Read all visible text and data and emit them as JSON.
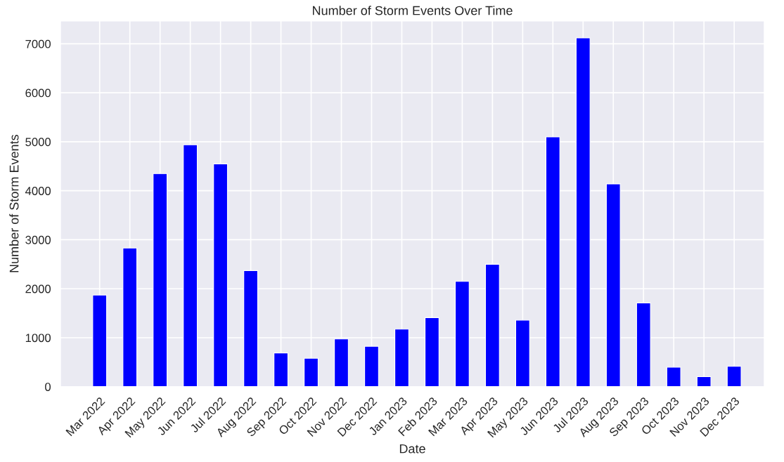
{
  "chart_data": {
    "type": "bar",
    "title": "Number of Storm Events Over Time",
    "xlabel": "Date",
    "ylabel": "Number of Storm Events",
    "categories": [
      "Mar 2022",
      "Apr 2022",
      "May 2022",
      "Jun 2022",
      "Jul 2022",
      "Aug 2022",
      "Sep 2022",
      "Oct 2022",
      "Nov 2022",
      "Dec 2022",
      "Jan 2023",
      "Feb 2023",
      "Mar 2023",
      "Apr 2023",
      "May 2023",
      "Jun 2023",
      "Jul 2023",
      "Aug 2023",
      "Sep 2023",
      "Oct 2023",
      "Nov 2023",
      "Dec 2023"
    ],
    "values": [
      1870,
      2830,
      4350,
      4940,
      4550,
      2370,
      690,
      580,
      975,
      825,
      1175,
      1410,
      2150,
      2500,
      1360,
      5100,
      7120,
      4140,
      1710,
      400,
      205,
      415
    ],
    "color": "#0000ff",
    "ylim": [
      0,
      7470
    ],
    "yticks": [
      0,
      1000,
      2000,
      3000,
      4000,
      5000,
      6000,
      7000
    ],
    "grid": true
  }
}
